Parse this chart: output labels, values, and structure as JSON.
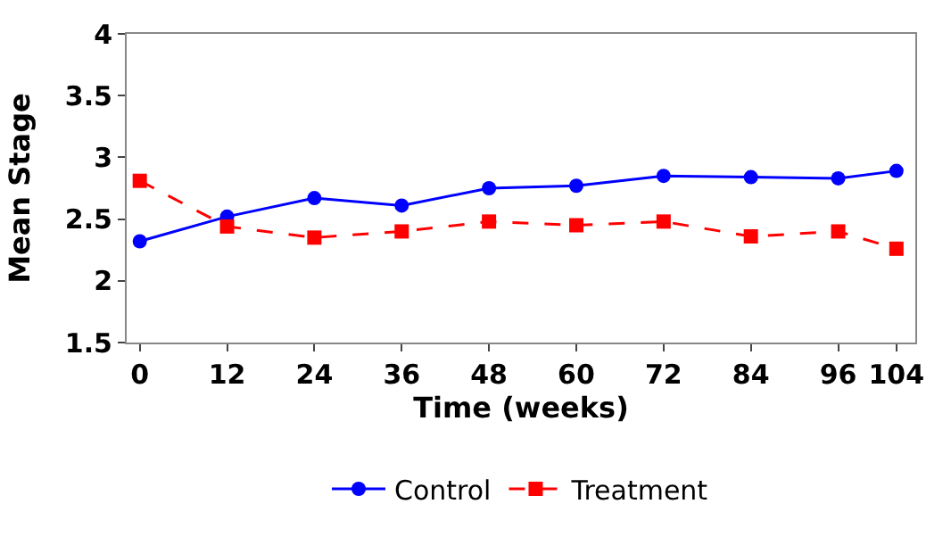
{
  "chart_data": {
    "type": "line",
    "xlabel": "Time (weeks)",
    "ylabel": "Mean Stage",
    "x": [
      0,
      12,
      24,
      36,
      48,
      60,
      72,
      84,
      96,
      104
    ],
    "series": [
      {
        "name": "Control",
        "color": "#0000ff",
        "marker": "circle",
        "line_style": "solid",
        "values": [
          2.32,
          2.52,
          2.67,
          2.61,
          2.75,
          2.77,
          2.85,
          2.84,
          2.83,
          2.89
        ]
      },
      {
        "name": "Treatment",
        "color": "#ff0000",
        "marker": "square",
        "line_style": "dashed",
        "values": [
          2.81,
          2.44,
          2.35,
          2.4,
          2.48,
          2.45,
          2.48,
          2.36,
          2.4,
          2.26
        ]
      }
    ],
    "xlim": [
      -1.8,
      106.6
    ],
    "xticks": [
      0,
      12,
      24,
      36,
      48,
      60,
      72,
      84,
      96,
      104
    ],
    "ylim": [
      1.5,
      4
    ],
    "yticks": [
      1.5,
      2,
      2.5,
      3,
      3.5,
      4
    ],
    "legend": "bottom"
  }
}
